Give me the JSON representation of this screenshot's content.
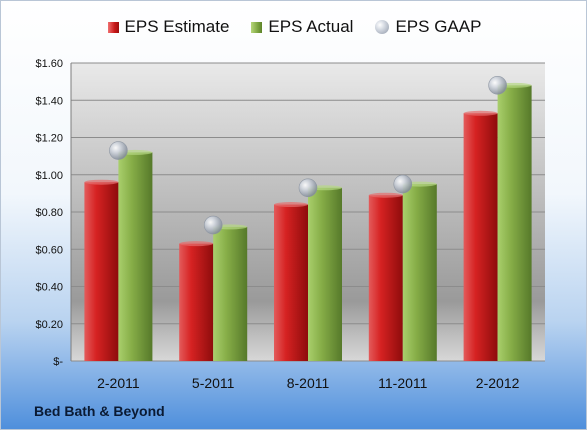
{
  "company": "Bed Bath & Beyond",
  "legend": [
    {
      "label": "EPS Estimate",
      "key": "estimate"
    },
    {
      "label": "EPS Actual",
      "key": "actual"
    },
    {
      "label": "EPS GAAP",
      "key": "gaap"
    }
  ],
  "colors": {
    "estimate": "#c81818",
    "actual": "#7ea642",
    "gaap": "#a9b1bd"
  },
  "chart_data": {
    "type": "bar",
    "categories": [
      "2-2011",
      "5-2011",
      "8-2011",
      "11-2011",
      "2-2012"
    ],
    "series": [
      {
        "name": "EPS Estimate",
        "kind": "bar",
        "values": [
          0.96,
          0.63,
          0.84,
          0.89,
          1.33
        ]
      },
      {
        "name": "EPS Actual",
        "kind": "bar",
        "values": [
          1.12,
          0.72,
          0.93,
          0.95,
          1.48
        ]
      },
      {
        "name": "EPS GAAP",
        "kind": "marker",
        "values": [
          1.13,
          0.73,
          0.93,
          0.95,
          1.48
        ]
      }
    ],
    "ylim": [
      0,
      1.6
    ],
    "yticks": [
      0,
      0.2,
      0.4,
      0.6,
      0.8,
      1.0,
      1.2,
      1.4,
      1.6
    ],
    "ytick_labels": [
      "$-",
      "$0.20",
      "$0.40",
      "$0.60",
      "$0.80",
      "$1.00",
      "$1.20",
      "$1.40",
      "$1.60"
    ],
    "grid": true,
    "legend_position": "top"
  }
}
